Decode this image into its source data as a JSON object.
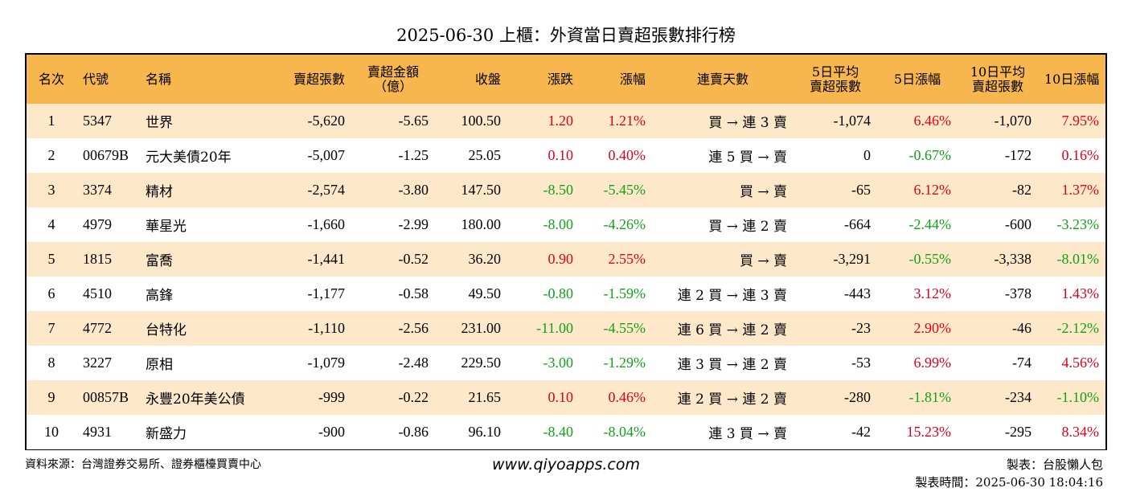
{
  "title": "2025-06-30 上櫃：外資當日賣超張數排行榜",
  "headers": [
    "名次",
    "代號",
    "名稱",
    "賣超張數",
    "賣超金額\n（億）",
    "收盤",
    "漲跌",
    "漲幅",
    "連賣天數",
    "5日平均\n賣超張數",
    "5日漲幅",
    "10日平均\n賣超張數",
    "10日漲幅"
  ],
  "rows": [
    {
      "rank": "1",
      "code": "5347",
      "name": "世界",
      "sell_qty": "-5,620",
      "sell_amt": "-5.65",
      "close": "100.50",
      "chg": "1.20",
      "chg_pct": "1.21%",
      "streak": "買 → 連 3 賣",
      "avg5": "-1,074",
      "pct5": "6.46%",
      "avg10": "-1,070",
      "pct10": "7.95%"
    },
    {
      "rank": "2",
      "code": "00679B",
      "name": "元大美債20年",
      "sell_qty": "-5,007",
      "sell_amt": "-1.25",
      "close": "25.05",
      "chg": "0.10",
      "chg_pct": "0.40%",
      "streak": "連 5 買 → 賣",
      "avg5": "0",
      "pct5": "-0.67%",
      "avg10": "-172",
      "pct10": "0.16%"
    },
    {
      "rank": "3",
      "code": "3374",
      "name": "精材",
      "sell_qty": "-2,574",
      "sell_amt": "-3.80",
      "close": "147.50",
      "chg": "-8.50",
      "chg_pct": "-5.45%",
      "streak": "買 → 賣",
      "avg5": "-65",
      "pct5": "6.12%",
      "avg10": "-82",
      "pct10": "1.37%"
    },
    {
      "rank": "4",
      "code": "4979",
      "name": "華星光",
      "sell_qty": "-1,660",
      "sell_amt": "-2.99",
      "close": "180.00",
      "chg": "-8.00",
      "chg_pct": "-4.26%",
      "streak": "買 → 連 2 賣",
      "avg5": "-664",
      "pct5": "-2.44%",
      "avg10": "-600",
      "pct10": "-3.23%"
    },
    {
      "rank": "5",
      "code": "1815",
      "name": "富喬",
      "sell_qty": "-1,441",
      "sell_amt": "-0.52",
      "close": "36.20",
      "chg": "0.90",
      "chg_pct": "2.55%",
      "streak": "買 → 賣",
      "avg5": "-3,291",
      "pct5": "-0.55%",
      "avg10": "-3,338",
      "pct10": "-8.01%"
    },
    {
      "rank": "6",
      "code": "4510",
      "name": "高鋒",
      "sell_qty": "-1,177",
      "sell_amt": "-0.58",
      "close": "49.50",
      "chg": "-0.80",
      "chg_pct": "-1.59%",
      "streak": "連 2 買 → 連 3 賣",
      "avg5": "-443",
      "pct5": "3.12%",
      "avg10": "-378",
      "pct10": "1.43%"
    },
    {
      "rank": "7",
      "code": "4772",
      "name": "台特化",
      "sell_qty": "-1,110",
      "sell_amt": "-2.56",
      "close": "231.00",
      "chg": "-11.00",
      "chg_pct": "-4.55%",
      "streak": "連 6 買 → 連 2 賣",
      "avg5": "-23",
      "pct5": "2.90%",
      "avg10": "-46",
      "pct10": "-2.12%"
    },
    {
      "rank": "8",
      "code": "3227",
      "name": "原相",
      "sell_qty": "-1,079",
      "sell_amt": "-2.48",
      "close": "229.50",
      "chg": "-3.00",
      "chg_pct": "-1.29%",
      "streak": "連 3 買 → 連 2 賣",
      "avg5": "-53",
      "pct5": "6.99%",
      "avg10": "-74",
      "pct10": "4.56%"
    },
    {
      "rank": "9",
      "code": "00857B",
      "name": "永豐20年美公債",
      "sell_qty": "-999",
      "sell_amt": "-0.22",
      "close": "21.65",
      "chg": "0.10",
      "chg_pct": "0.46%",
      "streak": "連 2 買 → 連 2 賣",
      "avg5": "-280",
      "pct5": "-1.81%",
      "avg10": "-234",
      "pct10": "-1.10%"
    },
    {
      "rank": "10",
      "code": "4931",
      "name": "新盛力",
      "sell_qty": "-900",
      "sell_amt": "-0.86",
      "close": "96.10",
      "chg": "-8.40",
      "chg_pct": "-8.04%",
      "streak": "連 3 買 → 賣",
      "avg5": "-42",
      "pct5": "15.23%",
      "avg10": "-295",
      "pct10": "8.34%"
    }
  ],
  "colors": {
    "header_bg": "#f7b64e",
    "stripe": "#fde8c9",
    "up": "#e0001b",
    "down": "#12a019"
  },
  "footer": {
    "source": "資料來源：台灣證券交易所、證券櫃檯買賣中心",
    "site": "www.qiyoapps.com",
    "author": "製表：台股懶人包",
    "time": "製表時間：2025-06-30 18:04:16"
  }
}
